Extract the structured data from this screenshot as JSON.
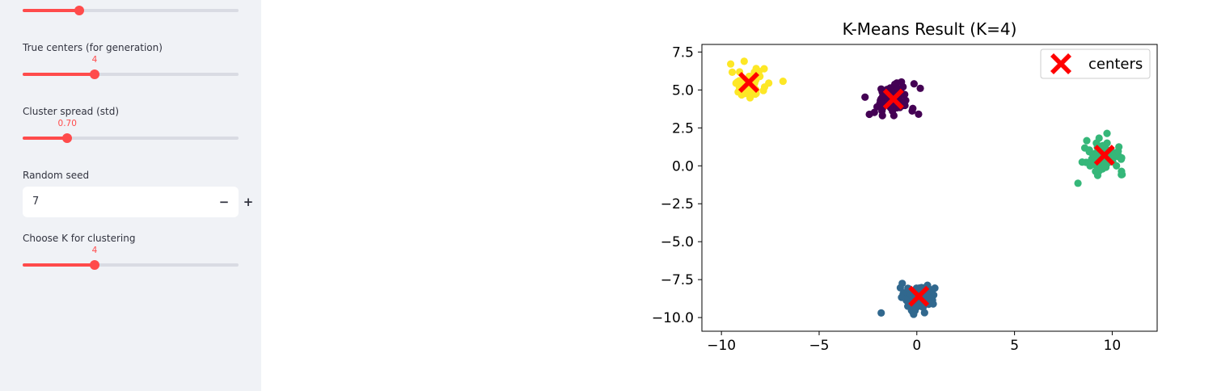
{
  "sidebar": {
    "accent": "#ff4b4b",
    "sliders": [
      {
        "label": "",
        "value": 300,
        "display": "300",
        "min": 50,
        "max": 1000
      },
      {
        "label": "True centers (for generation)",
        "value": 4,
        "display": "4",
        "min": 1,
        "max": 10
      },
      {
        "label": "Cluster spread (std)",
        "value": 0.7,
        "display": "0.70",
        "min": 0.1,
        "max": 3.0
      },
      {
        "label": "Choose K for clustering",
        "value": 4,
        "display": "4",
        "min": 1,
        "max": 10
      }
    ],
    "seed": {
      "label": "Random seed",
      "value": "7",
      "minus_icon": "minus-icon",
      "plus_icon": "plus-icon"
    }
  },
  "chart_data": {
    "type": "scatter",
    "title": "K-Means Result (K=4)",
    "xlabel": "",
    "ylabel": "",
    "xlim": [
      -11.0,
      12.3
    ],
    "ylim": [
      -10.9,
      8.0
    ],
    "xticks": [
      -10,
      -5,
      0,
      5,
      10
    ],
    "yticks": [
      -10.0,
      -7.5,
      -5.0,
      -2.5,
      0.0,
      2.5,
      5.0,
      7.5
    ],
    "grid": false,
    "legend": {
      "position": "top-right",
      "entries": [
        "centers"
      ]
    },
    "clusters": [
      {
        "color": "#fde725",
        "center": [
          -8.6,
          5.4
        ],
        "std": 0.45
      },
      {
        "color": "#440154",
        "center": [
          -1.3,
          4.3
        ],
        "std": 0.6
      },
      {
        "color": "#35b779",
        "center": [
          9.6,
          0.6
        ],
        "std": 0.5
      },
      {
        "color": "#31688e",
        "center": [
          0.1,
          -8.6
        ],
        "std": 0.45
      }
    ],
    "centers": {
      "name": "centers",
      "color": "#ff0000",
      "points": [
        [
          -8.6,
          5.5
        ],
        [
          -1.2,
          4.4
        ],
        [
          9.6,
          0.7
        ],
        [
          0.1,
          -8.6
        ]
      ]
    }
  }
}
